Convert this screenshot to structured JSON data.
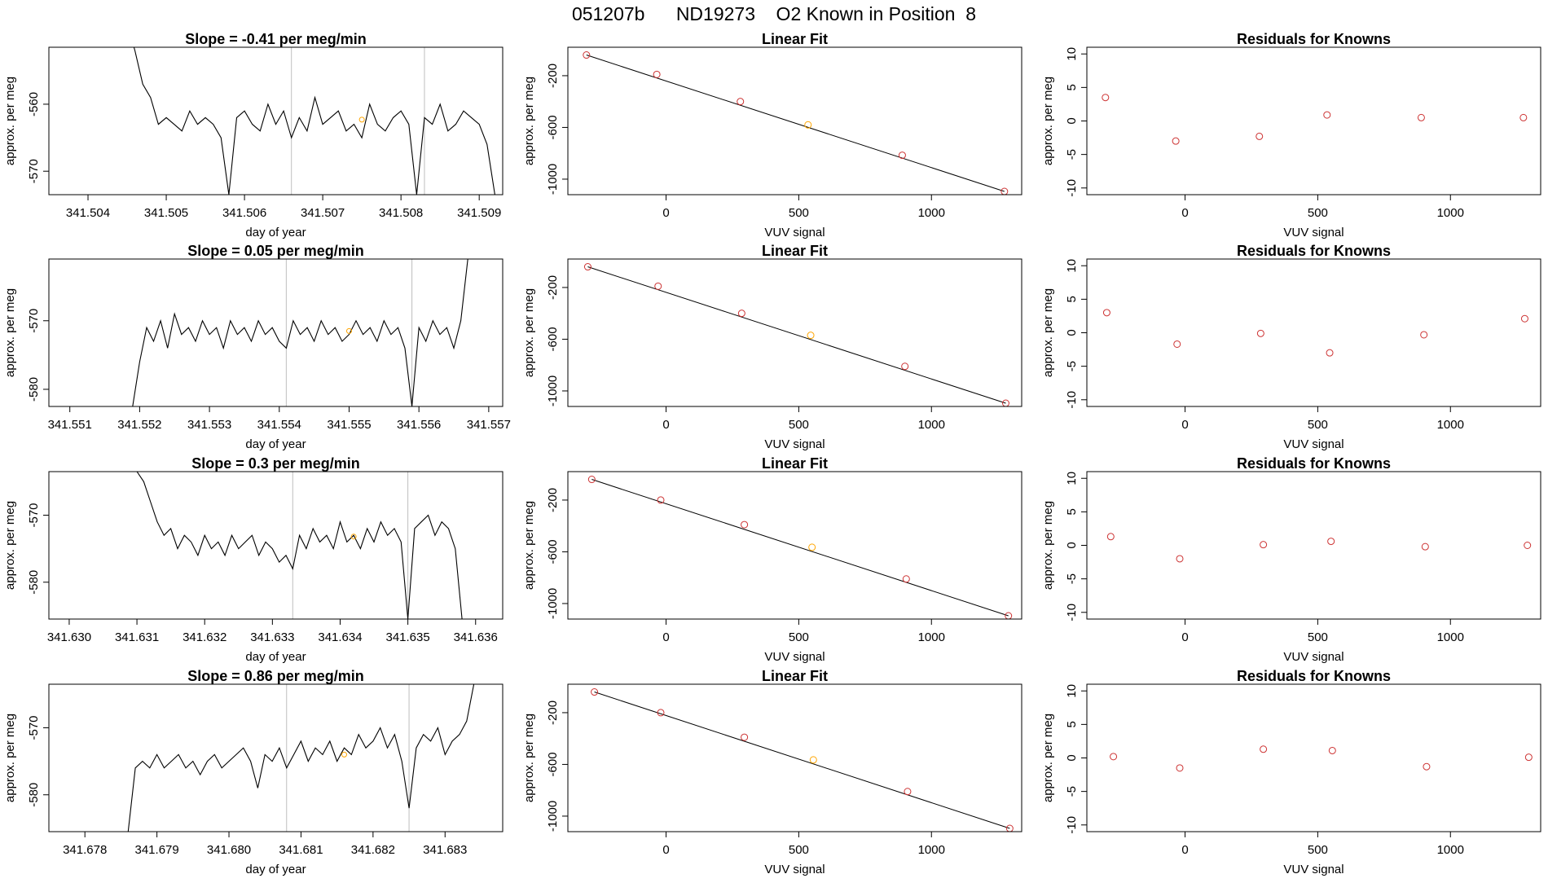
{
  "header": {
    "title": "051207b      ND19273    O2 Known in Position  8"
  },
  "styles": {
    "trace_color": "#000000",
    "vline_color": "#bebebe",
    "highlight_color": "#ffa500",
    "point_color": "#cd3333",
    "axis_color": "#000000"
  },
  "chart_data": [
    {
      "type": "line",
      "title": "Slope =  -0.41  per meg/min",
      "xlabel": "day of year",
      "ylabel": "approx. per meg",
      "xlim": [
        341.5035,
        341.5093
      ],
      "ylim": [
        -573.5,
        -551.5
      ],
      "xticks": [
        341.504,
        341.505,
        341.506,
        341.507,
        341.508,
        341.509
      ],
      "xtick_labels": [
        "341.504",
        "341.505",
        "341.506",
        "341.507",
        "341.508",
        "341.509"
      ],
      "yticks": [
        -570,
        -560
      ],
      "ytick_labels": [
        "-570",
        "-560"
      ],
      "vlines": [
        341.5066,
        341.5083
      ],
      "highlight": {
        "x": 341.5075,
        "y": -562.3
      },
      "x": [
        341.50455,
        341.5046,
        341.5047,
        341.5048,
        341.5049,
        341.505,
        341.5051,
        341.5052,
        341.5053,
        341.5054,
        341.5055,
        341.5056,
        341.5057,
        341.5058,
        341.5059,
        341.506,
        341.5061,
        341.5062,
        341.5063,
        341.5064,
        341.5065,
        341.5066,
        341.5067,
        341.5068,
        341.5069,
        341.507,
        341.5071,
        341.5072,
        341.5073,
        341.5074,
        341.5075,
        341.5076,
        341.5077,
        341.5078,
        341.5079,
        341.508,
        341.5081,
        341.5082,
        341.5083,
        341.5084,
        341.5085,
        341.5086,
        341.5087,
        341.5088,
        341.5089,
        341.509,
        341.5091,
        341.5092
      ],
      "y": [
        -550,
        -552,
        -557,
        -559,
        -563,
        -562,
        -563,
        -564,
        -561,
        -563,
        -562,
        -563,
        -565,
        -573.5,
        -562,
        -561,
        -563,
        -564,
        -560,
        -563,
        -561,
        -565,
        -562,
        -564,
        -559,
        -563,
        -562,
        -561,
        -564,
        -563,
        -565,
        -560,
        -563,
        -564,
        -562,
        -561,
        -563,
        -573.5,
        -562,
        -563,
        -560,
        -564,
        -563,
        -561,
        -562,
        -563,
        -566,
        -573.5
      ]
    },
    {
      "type": "scatter",
      "title": "Linear Fit",
      "xlabel": "VUV signal",
      "ylabel": "approx. per meg",
      "xlim": [
        -370,
        1340
      ],
      "ylim": [
        -1120,
        20
      ],
      "xticks": [
        0,
        500,
        1000
      ],
      "xtick_labels": [
        "0",
        "500",
        "1000"
      ],
      "yticks": [
        -1000,
        -600,
        -200
      ],
      "ytick_labels": [
        "-1000",
        "-600",
        "-200"
      ],
      "fit_line": {
        "x": [
          -300,
          1275
        ],
        "y": [
          -40,
          -1095
        ]
      },
      "x": [
        -300,
        -35,
        280,
        535,
        890,
        1275
      ],
      "y": [
        -40,
        -190,
        -400,
        -580,
        -815,
        -1095
      ],
      "highlight_index": 3
    },
    {
      "type": "scatter",
      "title": "Residuals for Knowns",
      "xlabel": "VUV signal",
      "ylabel": "approx. per meg",
      "xlim": [
        -370,
        1340
      ],
      "ylim": [
        -11,
        11
      ],
      "xticks": [
        0,
        500,
        1000
      ],
      "xtick_labels": [
        "0",
        "500",
        "1000"
      ],
      "yticks": [
        -10,
        -5,
        0,
        5,
        10
      ],
      "ytick_labels": [
        "-10",
        "-5",
        "0",
        "5",
        "10"
      ],
      "x": [
        -300,
        -35,
        280,
        535,
        890,
        1275
      ],
      "y": [
        3.5,
        -3.0,
        -2.3,
        0.9,
        0.5,
        0.5
      ]
    },
    {
      "type": "line",
      "title": "Slope =  0.05  per meg/min",
      "xlabel": "day of year",
      "ylabel": "approx. per meg",
      "xlim": [
        341.5507,
        341.5572
      ],
      "ylim": [
        -582.5,
        -561
      ],
      "xticks": [
        341.551,
        341.552,
        341.553,
        341.554,
        341.555,
        341.556,
        341.557
      ],
      "xtick_labels": [
        "341.551",
        "341.552",
        "341.553",
        "341.554",
        "341.555",
        "341.556",
        "341.557"
      ],
      "yticks": [
        -580,
        -570
      ],
      "ytick_labels": [
        "-580",
        "-570"
      ],
      "vlines": [
        341.5541,
        341.5559
      ],
      "highlight": {
        "x": 341.555,
        "y": -571.5
      },
      "x": [
        341.5519,
        341.552,
        341.5521,
        341.5522,
        341.5523,
        341.5524,
        341.5525,
        341.5526,
        341.5527,
        341.5528,
        341.5529,
        341.553,
        341.5531,
        341.5532,
        341.5533,
        341.5534,
        341.5535,
        341.5536,
        341.5537,
        341.5538,
        341.5539,
        341.554,
        341.5541,
        341.5542,
        341.5543,
        341.5544,
        341.5545,
        341.5546,
        341.5547,
        341.5548,
        341.5549,
        341.555,
        341.5551,
        341.5552,
        341.5553,
        341.5554,
        341.5555,
        341.5556,
        341.5557,
        341.5558,
        341.5559,
        341.556,
        341.5561,
        341.5562,
        341.5563,
        341.5564,
        341.5565,
        341.5566,
        341.5567
      ],
      "y": [
        -582.5,
        -576,
        -571,
        -573,
        -570,
        -574,
        -569,
        -572,
        -571,
        -573,
        -570,
        -572,
        -571,
        -574,
        -570,
        -572,
        -571,
        -573,
        -570,
        -572,
        -571,
        -573,
        -574,
        -570,
        -572,
        -571,
        -573,
        -570,
        -572,
        -571,
        -573,
        -572,
        -570,
        -572,
        -571,
        -573,
        -570,
        -572,
        -571,
        -574,
        -582.5,
        -571,
        -573,
        -570,
        -572,
        -571,
        -574,
        -570,
        -561
      ]
    },
    {
      "type": "scatter",
      "title": "Linear Fit",
      "xlabel": "VUV signal",
      "ylabel": "approx. per meg",
      "xlim": [
        -370,
        1340
      ],
      "ylim": [
        -1120,
        20
      ],
      "xticks": [
        0,
        500,
        1000
      ],
      "xtick_labels": [
        "0",
        "500",
        "1000"
      ],
      "yticks": [
        -1000,
        -600,
        -200
      ],
      "ytick_labels": [
        "-1000",
        "-600",
        "-200"
      ],
      "fit_line": {
        "x": [
          -295,
          1280
        ],
        "y": [
          -40,
          -1095
        ]
      },
      "x": [
        -295,
        -30,
        285,
        545,
        900,
        1280
      ],
      "y": [
        -40,
        -190,
        -400,
        -570,
        -810,
        -1095
      ],
      "highlight_index": 3
    },
    {
      "type": "scatter",
      "title": "Residuals for Knowns",
      "xlabel": "VUV signal",
      "ylabel": "approx. per meg",
      "xlim": [
        -370,
        1340
      ],
      "ylim": [
        -11,
        11
      ],
      "xticks": [
        0,
        500,
        1000
      ],
      "xtick_labels": [
        "0",
        "500",
        "1000"
      ],
      "yticks": [
        -10,
        -5,
        0,
        5,
        10
      ],
      "ytick_labels": [
        "-10",
        "-5",
        "0",
        "5",
        "10"
      ],
      "x": [
        -295,
        -30,
        285,
        545,
        900,
        1280
      ],
      "y": [
        3.0,
        -1.7,
        -0.1,
        -3.0,
        -0.3,
        2.1
      ]
    },
    {
      "type": "line",
      "title": "Slope =  0.3  per meg/min",
      "xlabel": "day of year",
      "ylabel": "approx. per meg",
      "xlim": [
        341.6297,
        341.6364
      ],
      "ylim": [
        -585.5,
        -563.5
      ],
      "xticks": [
        341.63,
        341.631,
        341.632,
        341.633,
        341.634,
        341.635,
        341.636
      ],
      "xtick_labels": [
        "341.630",
        "341.631",
        "341.632",
        "341.633",
        "341.634",
        "341.635",
        "341.636"
      ],
      "yticks": [
        -580,
        -570
      ],
      "ytick_labels": [
        "-580",
        "-570"
      ],
      "vlines": [
        341.6333,
        341.635
      ],
      "highlight": {
        "x": 341.6342,
        "y": -573.2
      },
      "x": [
        341.631,
        341.6311,
        341.6312,
        341.6313,
        341.6314,
        341.6315,
        341.6316,
        341.6317,
        341.6318,
        341.6319,
        341.632,
        341.6321,
        341.6322,
        341.6323,
        341.6324,
        341.6325,
        341.6326,
        341.6327,
        341.6328,
        341.6329,
        341.633,
        341.6331,
        341.6332,
        341.6333,
        341.6334,
        341.6335,
        341.6336,
        341.6337,
        341.6338,
        341.6339,
        341.634,
        341.6341,
        341.6342,
        341.6343,
        341.6344,
        341.6345,
        341.6346,
        341.6347,
        341.6348,
        341.6349,
        341.635,
        341.6351,
        341.6352,
        341.6353,
        341.6354,
        341.6355,
        341.6356,
        341.6357,
        341.6358
      ],
      "y": [
        -563.5,
        -565,
        -568,
        -571,
        -573,
        -572,
        -575,
        -573,
        -574,
        -576,
        -573,
        -575,
        -574,
        -576,
        -573,
        -575,
        -574,
        -573,
        -576,
        -574,
        -575,
        -577,
        -576,
        -578,
        -573,
        -575,
        -572,
        -574,
        -573,
        -575,
        -571,
        -574,
        -573,
        -575,
        -572,
        -574,
        -571,
        -573,
        -572,
        -574,
        -585.5,
        -572,
        -571,
        -570,
        -573,
        -571,
        -572,
        -575,
        -585.5
      ]
    },
    {
      "type": "scatter",
      "title": "Linear Fit",
      "xlabel": "VUV signal",
      "ylabel": "approx. per meg",
      "xlim": [
        -370,
        1340
      ],
      "ylim": [
        -1120,
        20
      ],
      "xticks": [
        0,
        500,
        1000
      ],
      "xtick_labels": [
        "0",
        "500",
        "1000"
      ],
      "yticks": [
        -1000,
        -600,
        -200
      ],
      "ytick_labels": [
        "-1000",
        "-600",
        "-200"
      ],
      "fit_line": {
        "x": [
          -280,
          1290
        ],
        "y": [
          -40,
          -1095
        ]
      },
      "x": [
        -280,
        -20,
        295,
        550,
        905,
        1290
      ],
      "y": [
        -40,
        -200,
        -390,
        -565,
        -810,
        -1095
      ],
      "highlight_index": 3
    },
    {
      "type": "scatter",
      "title": "Residuals for Knowns",
      "xlabel": "VUV signal",
      "ylabel": "approx. per meg",
      "xlim": [
        -370,
        1340
      ],
      "ylim": [
        -11,
        11
      ],
      "xticks": [
        0,
        500,
        1000
      ],
      "xtick_labels": [
        "0",
        "500",
        "1000"
      ],
      "yticks": [
        -10,
        -5,
        0,
        5,
        10
      ],
      "ytick_labels": [
        "-10",
        "-5",
        "0",
        "5",
        "10"
      ],
      "x": [
        -280,
        -20,
        295,
        550,
        905,
        1290
      ],
      "y": [
        1.3,
        -2.0,
        0.1,
        0.6,
        -0.2,
        0.0
      ]
    },
    {
      "type": "line",
      "title": "Slope =  0.86  per meg/min",
      "xlabel": "day of year",
      "ylabel": "approx. per meg",
      "xlim": [
        341.6775,
        341.6838
      ],
      "ylim": [
        -585.5,
        -563.5
      ],
      "xticks": [
        341.678,
        341.679,
        341.68,
        341.681,
        341.682,
        341.683
      ],
      "xtick_labels": [
        "341.678",
        "341.679",
        "341.680",
        "341.681",
        "341.682",
        "341.683"
      ],
      "yticks": [
        -580,
        -570
      ],
      "ytick_labels": [
        "-580",
        "-570"
      ],
      "vlines": [
        341.6808,
        341.6825
      ],
      "highlight": {
        "x": 341.6816,
        "y": -574
      },
      "x": [
        341.6786,
        341.6787,
        341.6788,
        341.6789,
        341.679,
        341.6791,
        341.6792,
        341.6793,
        341.6794,
        341.6795,
        341.6796,
        341.6797,
        341.6798,
        341.6799,
        341.68,
        341.6801,
        341.6802,
        341.6803,
        341.6804,
        341.6805,
        341.6806,
        341.6807,
        341.6808,
        341.6809,
        341.681,
        341.6811,
        341.6812,
        341.6813,
        341.6814,
        341.6815,
        341.6816,
        341.6817,
        341.6818,
        341.6819,
        341.682,
        341.6821,
        341.6822,
        341.6823,
        341.6824,
        341.6825,
        341.6826,
        341.6827,
        341.6828,
        341.6829,
        341.683,
        341.6831,
        341.6832,
        341.6833,
        341.6834
      ],
      "y": [
        -585.5,
        -576,
        -575,
        -576,
        -574,
        -576,
        -575,
        -574,
        -576,
        -575,
        -577,
        -575,
        -574,
        -576,
        -575,
        -574,
        -573,
        -575,
        -579,
        -574,
        -575,
        -573,
        -576,
        -574,
        -572,
        -575,
        -573,
        -574,
        -572,
        -575,
        -573,
        -574,
        -571,
        -573,
        -572,
        -570,
        -573,
        -571,
        -575,
        -582,
        -573,
        -571,
        -572,
        -570,
        -574,
        -572,
        -571,
        -569,
        -563.5
      ]
    },
    {
      "type": "scatter",
      "title": "Linear Fit",
      "xlabel": "VUV signal",
      "ylabel": "approx. per meg",
      "xlim": [
        -370,
        1340
      ],
      "ylim": [
        -1120,
        20
      ],
      "xticks": [
        0,
        500,
        1000
      ],
      "xtick_labels": [
        "0",
        "500",
        "1000"
      ],
      "yticks": [
        -1000,
        -600,
        -200
      ],
      "ytick_labels": [
        "-1000",
        "-600",
        "-200"
      ],
      "fit_line": {
        "x": [
          -270,
          1295
        ],
        "y": [
          -40,
          -1095
        ]
      },
      "x": [
        -270,
        -20,
        295,
        555,
        910,
        1295
      ],
      "y": [
        -40,
        -200,
        -390,
        -565,
        -810,
        -1095
      ],
      "highlight_index": 3
    },
    {
      "type": "scatter",
      "title": "Residuals for Knowns",
      "xlabel": "VUV signal",
      "ylabel": "approx. per meg",
      "xlim": [
        -370,
        1340
      ],
      "ylim": [
        -11,
        11
      ],
      "xticks": [
        0,
        500,
        1000
      ],
      "xtick_labels": [
        "0",
        "500",
        "1000"
      ],
      "yticks": [
        -10,
        -5,
        0,
        5,
        10
      ],
      "ytick_labels": [
        "-10",
        "-5",
        "0",
        "5",
        "10"
      ],
      "x": [
        -270,
        -20,
        295,
        555,
        910,
        1295
      ],
      "y": [
        0.2,
        -1.5,
        1.3,
        1.1,
        -1.3,
        0.1
      ]
    }
  ]
}
